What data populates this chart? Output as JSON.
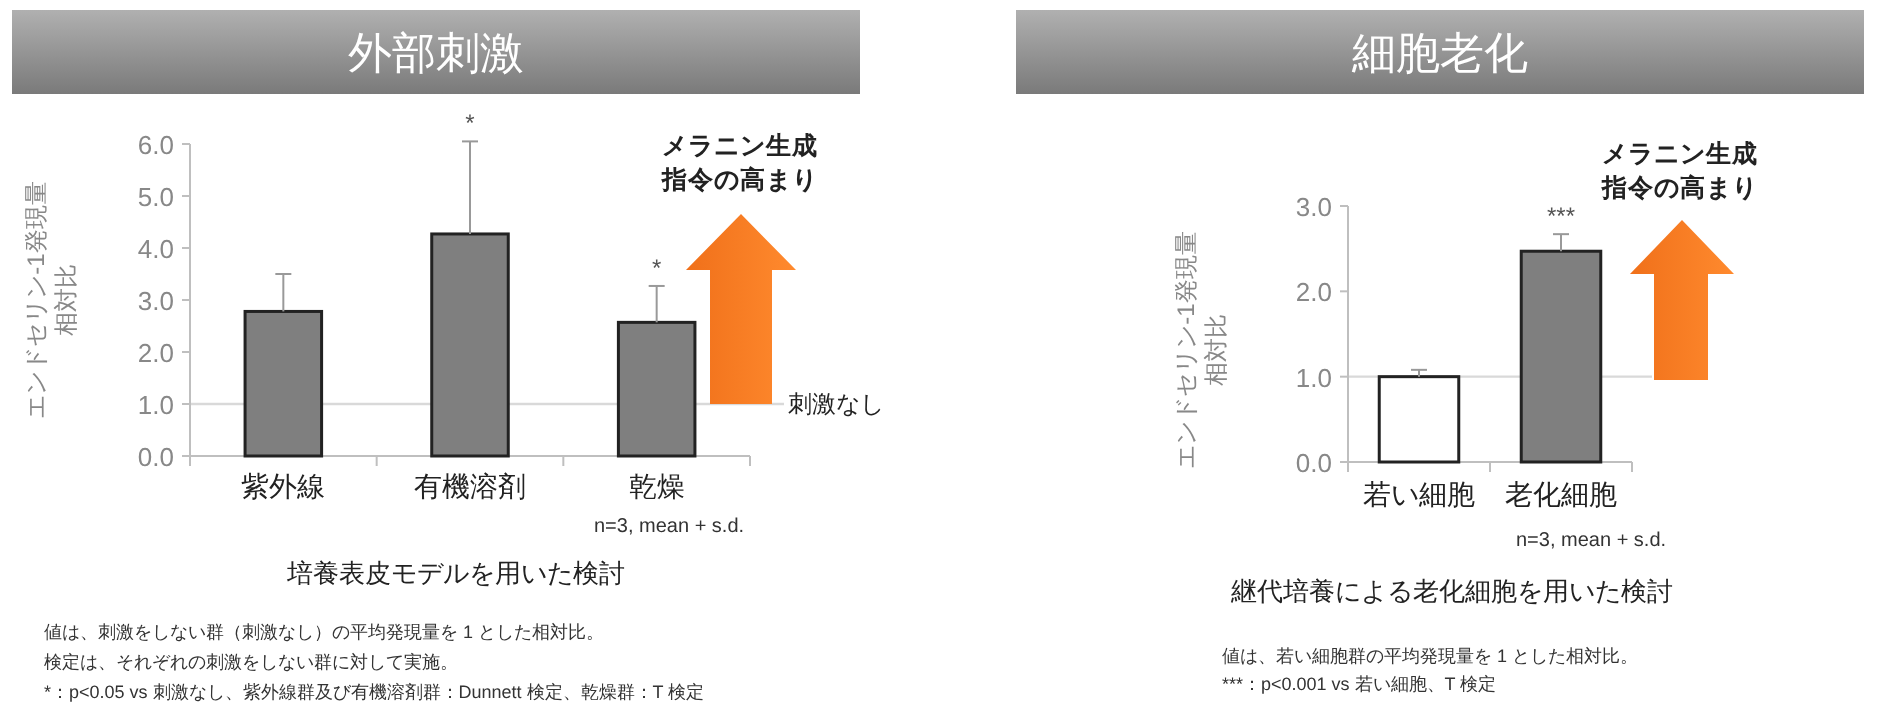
{
  "chart_data": [
    {
      "type": "bar",
      "title": "外部刺激",
      "xlabel": "培養表皮モデルを用いた検討",
      "ylabel": "エンドセリン-1発現量相対比",
      "categories": [
        "紫外線",
        "有機溶剤",
        "乾燥"
      ],
      "values": [
        2.78,
        4.27,
        2.57
      ],
      "colors": [
        "#7f7f7f",
        "#7f7f7f",
        "#7f7f7f"
      ],
      "errors": [
        [
          2.78,
          3.5
        ],
        [
          4.27,
          6.05
        ],
        [
          2.57,
          3.27
        ]
      ],
      "ylim": [
        0,
        6
      ],
      "yticks": [
        {
          "value": 0,
          "label": "0.0"
        },
        {
          "value": 1,
          "label": "1.0"
        },
        {
          "value": 2,
          "label": "2.0"
        },
        {
          "value": 3,
          "label": "3.0"
        },
        {
          "value": 4,
          "label": "4.0"
        },
        {
          "value": 5,
          "label": "5.0"
        },
        {
          "value": 6,
          "label": "6.0"
        }
      ],
      "ref_lines": [
        {
          "axis": "y",
          "value": 1,
          "label": "刺激なし",
          "color": "#d9d9d9"
        }
      ],
      "annotations": [
        {
          "text": "*",
          "x": "有機溶剤",
          "y": 6.05
        },
        {
          "text": "*",
          "x": "乾燥",
          "y": 3.27
        },
        "メラニン生成指令の高まり",
        "n=3, mean + s.d.",
        "値は、刺激をしない群（刺激なし）の平均発現量を 1 とした相対比。",
        "検定は、それぞれの刺激をしない群に対して実施。",
        "*：p<0.05 vs 刺激なし、紫外線群及び有機溶剤群：Dunnett 検定、乾燥群：T 検定"
      ]
    },
    {
      "type": "bar",
      "title": "細胞老化",
      "xlabel": "継代培養による老化細胞を用いた検討",
      "ylabel": "エンドセリン-1発現量相対比",
      "categories": [
        "若い細胞",
        "老化細胞"
      ],
      "values": [
        1.0,
        2.47
      ],
      "colors": [
        "#ffffff",
        "#7f7f7f"
      ],
      "errors": [
        [
          1.0,
          1.08
        ],
        [
          2.47,
          2.67
        ]
      ],
      "ylim": [
        0,
        3
      ],
      "yticks": [
        {
          "value": 0,
          "label": "0.0"
        },
        {
          "value": 1,
          "label": "1.0"
        },
        {
          "value": 2,
          "label": "2.0"
        },
        {
          "value": 3,
          "label": "3.0"
        }
      ],
      "ref_lines": [
        {
          "axis": "y",
          "value": 1,
          "color": "#d9d9d9"
        }
      ],
      "annotations": [
        {
          "text": "***",
          "x": "老化細胞",
          "y": 2.67
        },
        "メラニン生成指令の高まり",
        "n=3, mean + s.d.",
        "値は、若い細胞群の平均発現量を 1 とした相対比。",
        "***：p<0.001 vs 若い細胞、T 検定"
      ]
    }
  ]
}
